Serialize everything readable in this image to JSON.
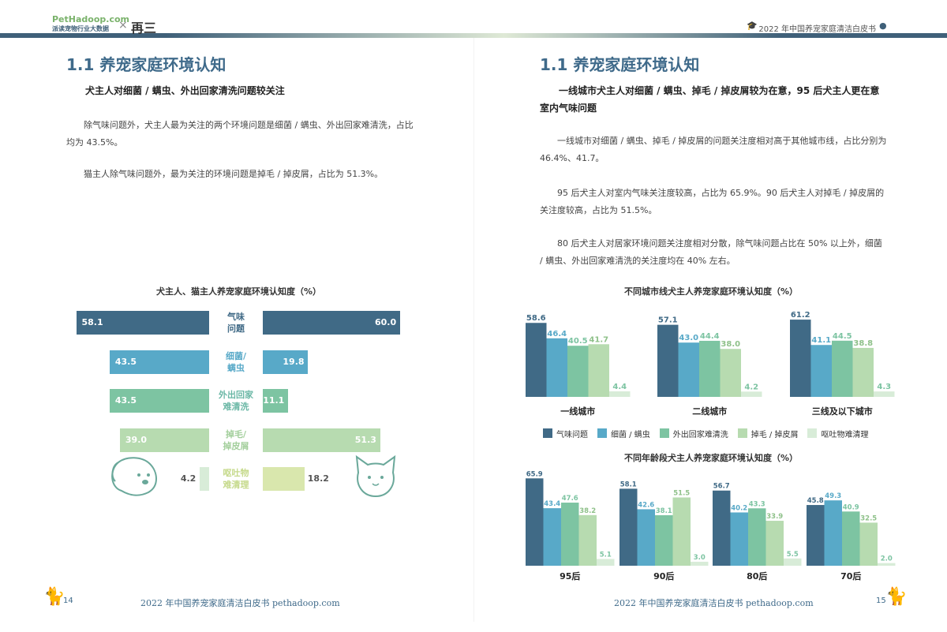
{
  "header": {
    "logo_main": "PetHadoop.com",
    "logo_sub": "派读宠物行业大数据",
    "partner_name": "再三",
    "times_symbol": "×",
    "right_title": "2022 年中国养宠家庭清洁白皮书"
  },
  "left": {
    "section_title": "1.1 养宠家庭环境认知",
    "heading": "犬主人对细菌 / 螨虫、外出回家清洗问题较关注",
    "paragraphs": [
      "除气味问题外，犬主人最为关注的两个环境问题是细菌 / 螨虫、外出回家难清洗，占比均为 43.5%。",
      "猫主人除气味问题外，最为关注的环境问题是掉毛 / 掉皮屑，占比为 51.3%。"
    ],
    "page_number": "14",
    "footer": "2022 年中国养宠家庭清洁白皮书 pethadoop.com"
  },
  "right": {
    "section_title": "1.1 养宠家庭环境认知",
    "heading": "一线城市犬主人对细菌 / 螨虫、掉毛 / 掉皮屑较为在意，95 后犬主人更在意室内气味问题",
    "paragraphs": [
      "一线城市对细菌 / 螨虫、掉毛 / 掉皮屑的问题关注度相对高于其他城市线，占比分别为 46.4%、41.7。",
      "95 后犬主人对室内气味关注度较高，占比为 65.9%。90 后犬主人对掉毛 / 掉皮屑的关注度较高，占比为 51.5%。",
      "80 后犬主人对居家环境问题关注度相对分散，除气味问题占比在 50% 以上外，细菌 / 螨虫、外出回家难清洗的关注度均在 40% 左右。"
    ],
    "page_number": "15",
    "footer": "2022 年中国养宠家庭清洁白皮书 pethadoop.com"
  },
  "colors": {
    "odor": "#406a86",
    "bacteria": "#58a9c8",
    "outdoor": "#7dc4a2",
    "shedding": "#b7dbb0",
    "vomit": "#d8ecd8",
    "cat_vomit": "#d9e7ad",
    "label_text": "#6ab7a5"
  },
  "chart_data": [
    {
      "type": "bar",
      "orientation": "horizontal-butterfly",
      "title": "犬主人、猫主人养宠家庭环境认知度（%）",
      "categories": [
        "气味问题",
        "细菌/螨虫",
        "外出回家难清洗",
        "掉毛/掉皮屑",
        "呕吐物难清理"
      ],
      "category_lines": [
        [
          "气味",
          "问题"
        ],
        [
          "细菌/",
          "螨虫"
        ],
        [
          "外出回家",
          "难清洗"
        ],
        [
          "掉毛/",
          "掉皮屑"
        ],
        [
          "呕吐物",
          "难清理"
        ]
      ],
      "series": [
        {
          "values": [
            58.1,
            43.5,
            43.5,
            39.0,
            4.2
          ]
        },
        {
          "values": [
            60.0,
            19.8,
            11.1,
            51.3,
            18.2
          ]
        }
      ]
    },
    {
      "type": "bar",
      "title": "不同城市线犬主人养宠家庭环境认知度（%）",
      "categories": [
        "一线城市",
        "二线城市",
        "三线及以下城市"
      ],
      "legend": [
        "气味问题",
        "细菌 / 螨虫",
        "外出回家难清洗",
        "掉毛 / 掉皮屑",
        "呕吐物难清理"
      ],
      "series": [
        {
          "name": "气味问题",
          "values": [
            58.6,
            57.1,
            61.2
          ]
        },
        {
          "name": "细菌 / 螨虫",
          "values": [
            46.4,
            43.0,
            41.1
          ]
        },
        {
          "name": "外出回家难清洗",
          "values": [
            40.5,
            44.4,
            44.5
          ]
        },
        {
          "name": "掉毛 / 掉皮屑",
          "values": [
            41.7,
            38.0,
            38.8
          ]
        },
        {
          "name": "呕吐物难清理",
          "values": [
            4.4,
            4.2,
            4.3
          ]
        }
      ]
    },
    {
      "type": "bar",
      "title": "不同年龄段犬主人养宠家庭环境认知度（%）",
      "categories": [
        "95后",
        "90后",
        "80后",
        "70后"
      ],
      "series": [
        {
          "name": "气味问题",
          "values": [
            65.9,
            58.1,
            56.7,
            45.8
          ]
        },
        {
          "name": "细菌 / 螨虫",
          "values": [
            43.4,
            42.6,
            40.2,
            49.3
          ]
        },
        {
          "name": "外出回家难清洗",
          "values": [
            47.6,
            38.1,
            43.3,
            40.9
          ]
        },
        {
          "name": "掉毛 / 掉皮屑",
          "values": [
            38.2,
            51.5,
            33.9,
            32.5
          ]
        },
        {
          "name": "呕吐物难清理",
          "values": [
            5.1,
            3.0,
            5.5,
            2.0
          ]
        }
      ]
    }
  ]
}
